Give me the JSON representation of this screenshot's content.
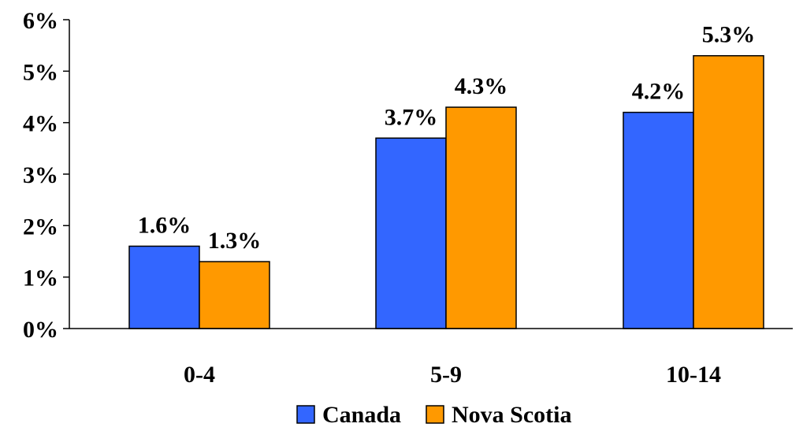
{
  "chart_data": {
    "type": "bar",
    "categories": [
      "0-4",
      "5-9",
      "10-14"
    ],
    "series": [
      {
        "name": "Canada",
        "values": [
          1.6,
          3.7,
          4.2
        ],
        "labels": [
          "1.6%",
          "3.7%",
          "4.2%"
        ],
        "color": "#3366FF"
      },
      {
        "name": "Nova Scotia",
        "values": [
          1.3,
          4.3,
          5.3
        ],
        "labels": [
          "1.3%",
          "4.3%",
          "5.3%"
        ],
        "color": "#FF9900"
      }
    ],
    "ylim": [
      0,
      6
    ],
    "yticks": [
      {
        "value": 0,
        "label": "0%"
      },
      {
        "value": 1,
        "label": "1%"
      },
      {
        "value": 2,
        "label": "2%"
      },
      {
        "value": 3,
        "label": "3%"
      },
      {
        "value": 4,
        "label": "4%"
      },
      {
        "value": 5,
        "label": "5%"
      },
      {
        "value": 6,
        "label": "6%"
      }
    ],
    "grid": false,
    "legend_position": "bottom-center"
  }
}
